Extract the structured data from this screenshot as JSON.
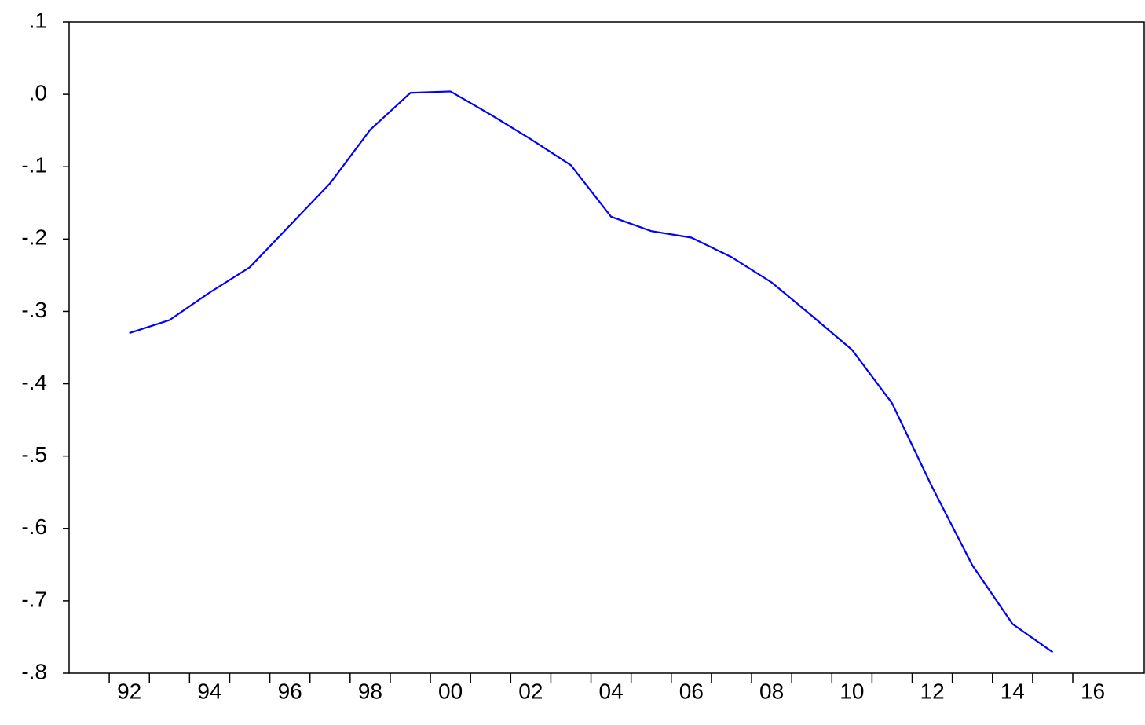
{
  "chart_data": {
    "type": "line",
    "categories": [
      null,
      "92",
      null,
      "94",
      null,
      "96",
      null,
      "98",
      null,
      "00",
      null,
      "02",
      null,
      "04",
      null,
      "06",
      null,
      "08",
      null,
      "10",
      null,
      "12",
      null,
      "14",
      null,
      "16"
    ],
    "series": [
      {
        "color": "#0000ff",
        "values": [
          null,
          -0.33,
          -0.312,
          -0.274,
          -0.239,
          -0.181,
          -0.123,
          -0.049,
          0.002,
          0.004,
          -0.028,
          -0.062,
          -0.098,
          -0.169,
          -0.189,
          -0.198,
          -0.225,
          -0.26,
          -0.306,
          -0.353,
          -0.427,
          -0.543,
          -0.651,
          -0.732,
          -0.771,
          null
        ]
      }
    ],
    "ylim": [
      -0.8,
      0.1
    ],
    "yticks": [
      {
        "value": 0.1,
        "label": ".1"
      },
      {
        "value": 0.0,
        "label": ".0"
      },
      {
        "value": -0.1,
        "label": "-.1"
      },
      {
        "value": -0.2,
        "label": "-.2"
      },
      {
        "value": -0.3,
        "label": "-.3"
      },
      {
        "value": -0.4,
        "label": "-.4"
      },
      {
        "value": -0.5,
        "label": "-.5"
      },
      {
        "value": -0.6,
        "label": "-.6"
      },
      {
        "value": -0.7,
        "label": "-.7"
      },
      {
        "value": -0.8,
        "label": "-.8"
      }
    ]
  }
}
